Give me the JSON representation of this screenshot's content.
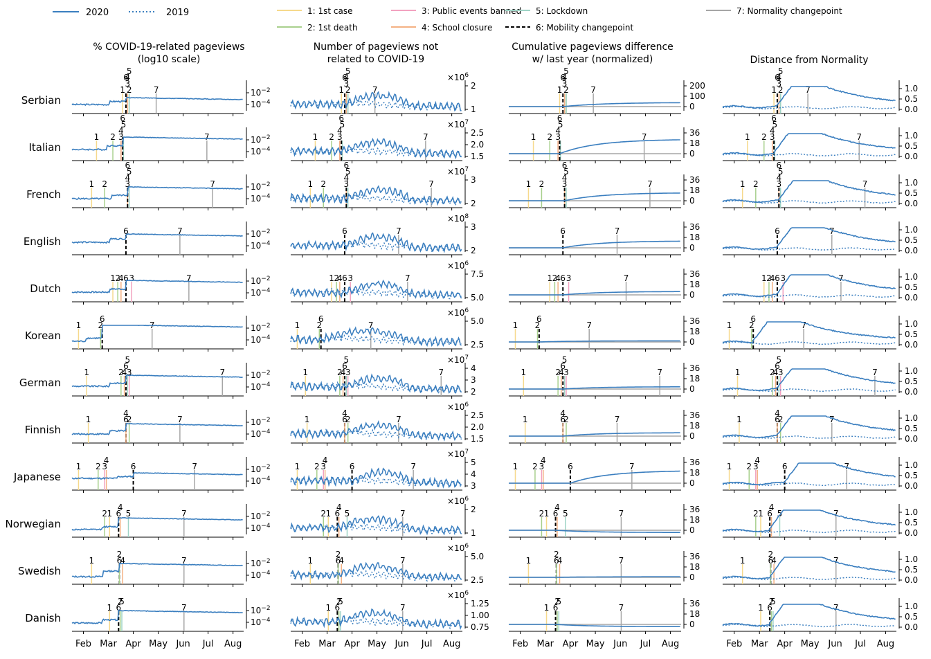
{
  "legend": {
    "series": [
      {
        "label": "2020",
        "style": "solid",
        "color": "#3a7ebf"
      },
      {
        "label": "2019",
        "style": "dotted",
        "color": "#3a7ebf"
      }
    ],
    "events": [
      {
        "label": "1: 1st case",
        "color": "#f6d98c",
        "style": "solid"
      },
      {
        "label": "2: 1st death",
        "color": "#a8d08d",
        "style": "solid"
      },
      {
        "label": "3: Public events banned",
        "color": "#f2a2c0",
        "style": "solid"
      },
      {
        "label": "4: School closure",
        "color": "#f4b183",
        "style": "solid"
      },
      {
        "label": "5: Lockdown",
        "color": "#9fd4c6",
        "style": "solid"
      },
      {
        "label": "6: Mobility changepoint",
        "color": "#000000",
        "style": "dashed"
      },
      {
        "label": "7: Normality changepoint",
        "color": "#a6a6a6",
        "style": "solid"
      }
    ]
  },
  "columns": [
    {
      "title_lines": [
        "% COVID-19-related pageviews",
        "(log10 scale)"
      ]
    },
    {
      "title_lines": [
        "Number of pageviews not",
        "related to COVID-19"
      ]
    },
    {
      "title_lines": [
        "Cumulative pageviews difference",
        "w/ last year (normalized)"
      ]
    },
    {
      "title_lines": [
        "Distance from Normality"
      ]
    }
  ],
  "x_ticks": [
    "Feb",
    "Mar",
    "Apr",
    "May",
    "Jun",
    "Jul",
    "Aug"
  ],
  "chart_data": {
    "type": "line",
    "x_axis": {
      "ticks": [
        "Feb",
        "Mar",
        "Apr",
        "May",
        "Jun",
        "Jul",
        "Aug"
      ],
      "range_days": [
        0,
        210
      ]
    },
    "panels": {
      "log_share": {
        "scale": "log",
        "ticks": [
          "10^-2",
          "10^-4"
        ]
      },
      "cumulative": {
        "ticks": [
          "0",
          "18",
          "36"
        ],
        "serbian_ticks": [
          "0",
          "100",
          "200"
        ]
      },
      "distance": {
        "ticks": [
          "0.0",
          "0.5",
          "1.0"
        ]
      }
    },
    "languages": [
      {
        "name": "Serbian",
        "scale": "6",
        "pv_ticks": [
          "1",
          "2"
        ],
        "events": [
          {
            "id": 1,
            "d": 62
          },
          {
            "id": 2,
            "d": 70
          },
          {
            "id": 3,
            "d": 68
          },
          {
            "id": 4,
            "d": 68
          },
          {
            "id": 5,
            "d": 70
          },
          {
            "id": 6,
            "d": 66
          },
          {
            "id": 7,
            "d": 103
          }
        ],
        "share_level": -4.3,
        "share_jump": 0.9,
        "share_after": -3.7,
        "cum_end": 40,
        "cum_max": 200,
        "distance_peak": 0.95
      },
      {
        "name": "Italian",
        "scale": "7",
        "pv_ticks": [
          "1.5",
          "2.0",
          "2.5"
        ],
        "events": [
          {
            "id": 1,
            "d": 30
          },
          {
            "id": 2,
            "d": 50
          },
          {
            "id": 3,
            "d": 60
          },
          {
            "id": 4,
            "d": 60
          },
          {
            "id": 5,
            "d": 63
          },
          {
            "id": 6,
            "d": 62
          },
          {
            "id": 7,
            "d": 165
          }
        ],
        "share_level": -4.0,
        "share_jump": 1.1,
        "share_after": -2.6,
        "cum_end": 25,
        "cum_max": 36,
        "distance_peak": 0.95
      },
      {
        "name": "French",
        "scale": "7",
        "pv_ticks": [
          "2",
          "3"
        ],
        "events": [
          {
            "id": 1,
            "d": 24
          },
          {
            "id": 2,
            "d": 40
          },
          {
            "id": 3,
            "d": 68
          },
          {
            "id": 4,
            "d": 68
          },
          {
            "id": 5,
            "d": 70
          },
          {
            "id": 6,
            "d": 68
          },
          {
            "id": 7,
            "d": 172
          }
        ],
        "share_level": -4.3,
        "share_jump": 1.0,
        "share_after": -3.0,
        "cum_end": 14,
        "cum_max": 36,
        "distance_peak": 0.95
      },
      {
        "name": "English",
        "scale": "8",
        "pv_ticks": [
          "2",
          "3"
        ],
        "events": [
          {
            "id": 6,
            "d": 66
          },
          {
            "id": 7,
            "d": 132
          }
        ],
        "share_level": -3.8,
        "share_jump": 1.0,
        "share_after": -3.0,
        "cum_end": 12,
        "cum_max": 36,
        "distance_peak": 0.95
      },
      {
        "name": "Dutch",
        "scale": "6",
        "pv_ticks": [
          "5.0",
          "7.5"
        ],
        "events": [
          {
            "id": 1,
            "d": 50
          },
          {
            "id": 2,
            "d": 56
          },
          {
            "id": 4,
            "d": 60
          },
          {
            "id": 6,
            "d": 66
          },
          {
            "id": 3,
            "d": 73
          },
          {
            "id": 7,
            "d": 143
          }
        ],
        "share_level": -4.2,
        "share_jump": 0.9,
        "share_after": -2.9,
        "cum_end": 6,
        "cum_max": 36,
        "distance_peak": 1.0
      },
      {
        "name": "Korean",
        "scale": "6",
        "pv_ticks": [
          "2.5",
          "5.0"
        ],
        "events": [
          {
            "id": 1,
            "d": 8
          },
          {
            "id": 2,
            "d": 35
          },
          {
            "id": 6,
            "d": 37
          },
          {
            "id": 7,
            "d": 98
          }
        ],
        "share_level": -4.5,
        "share_jump": 0.9,
        "share_after": -2.5,
        "cum_end": 2,
        "cum_max": 36,
        "distance_peak": 0.95
      },
      {
        "name": "German",
        "scale": "7",
        "pv_ticks": [
          "2",
          "3",
          "4"
        ],
        "events": [
          {
            "id": 1,
            "d": 18
          },
          {
            "id": 2,
            "d": 60
          },
          {
            "id": 4,
            "d": 64
          },
          {
            "id": 6,
            "d": 66
          },
          {
            "id": 3,
            "d": 70
          },
          {
            "id": 5,
            "d": 68
          },
          {
            "id": 7,
            "d": 184
          }
        ],
        "share_level": -4.2,
        "share_jump": 0.9,
        "share_after": -3.0,
        "cum_end": 4,
        "cum_max": 36,
        "distance_peak": 0.95
      },
      {
        "name": "Finnish",
        "scale": "6",
        "pv_ticks": [
          "1.5",
          "2.0",
          "2.5"
        ],
        "events": [
          {
            "id": 1,
            "d": 20
          },
          {
            "id": 6,
            "d": 66
          },
          {
            "id": 4,
            "d": 66
          },
          {
            "id": 2,
            "d": 70
          },
          {
            "id": 7,
            "d": 132
          }
        ],
        "share_level": -4.3,
        "share_jump": 0.9,
        "share_after": -3.2,
        "cum_end": 6,
        "cum_max": 36,
        "distance_peak": 0.95
      },
      {
        "name": "Japanese",
        "scale": "7",
        "pv_ticks": [
          "3",
          "4",
          "5"
        ],
        "events": [
          {
            "id": 1,
            "d": 8
          },
          {
            "id": 2,
            "d": 32
          },
          {
            "id": 3,
            "d": 40
          },
          {
            "id": 4,
            "d": 42
          },
          {
            "id": 6,
            "d": 75
          },
          {
            "id": 7,
            "d": 150
          }
        ],
        "share_level": -3.9,
        "share_jump": 0.5,
        "share_after": -3.5,
        "cum_end": 22,
        "cum_max": 36,
        "distance_peak": 0.95
      },
      {
        "name": "Norwegian",
        "scale": "6",
        "pv_ticks": [
          "1",
          "2"
        ],
        "events": [
          {
            "id": 2,
            "d": 40
          },
          {
            "id": 1,
            "d": 46
          },
          {
            "id": 6,
            "d": 57
          },
          {
            "id": 4,
            "d": 59
          },
          {
            "id": 5,
            "d": 69
          },
          {
            "id": 7,
            "d": 137
          }
        ],
        "share_level": -4.5,
        "share_jump": 0.8,
        "share_after": -3.2,
        "cum_end": -4,
        "cum_max": 36,
        "distance_peak": 1.0
      },
      {
        "name": "Swedish",
        "scale": "6",
        "pv_ticks": [
          "2.5",
          "5.0"
        ],
        "events": [
          {
            "id": 1,
            "d": 24
          },
          {
            "id": 6,
            "d": 58
          },
          {
            "id": 2,
            "d": 58
          },
          {
            "id": 4,
            "d": 62
          },
          {
            "id": 7,
            "d": 137
          }
        ],
        "share_level": -4.5,
        "share_jump": 1.6,
        "share_after": -3.0,
        "cum_end": 1,
        "cum_max": 36,
        "distance_peak": 1.0
      },
      {
        "name": "Danish",
        "scale": "6",
        "pv_ticks": [
          "0.75",
          "1.00",
          "1.25"
        ],
        "events": [
          {
            "id": 1,
            "d": 46
          },
          {
            "id": 6,
            "d": 57
          },
          {
            "id": 2,
            "d": 59
          },
          {
            "id": 5,
            "d": 61
          },
          {
            "id": 7,
            "d": 137
          }
        ],
        "share_level": -4.4,
        "share_jump": 0.9,
        "share_after": -3.0,
        "cum_end": -4,
        "cum_max": 36,
        "distance_peak": 1.0
      }
    ]
  }
}
